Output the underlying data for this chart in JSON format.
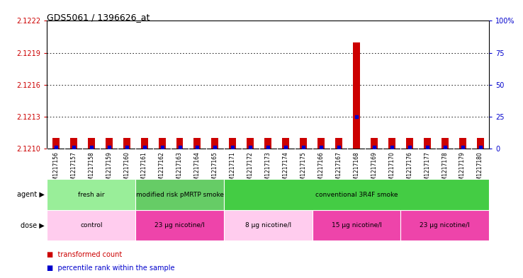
{
  "title": "GDS5061 / 1396626_at",
  "samples": [
    "GSM1217156",
    "GSM1217157",
    "GSM1217158",
    "GSM1217159",
    "GSM1217160",
    "GSM1217161",
    "GSM1217162",
    "GSM1217163",
    "GSM1217164",
    "GSM1217165",
    "GSM1217171",
    "GSM1217172",
    "GSM1217173",
    "GSM1217174",
    "GSM1217175",
    "GSM1217166",
    "GSM1217167",
    "GSM1217168",
    "GSM1217169",
    "GSM1217170",
    "GSM1217176",
    "GSM1217177",
    "GSM1217178",
    "GSM1217179",
    "GSM1217180"
  ],
  "transformed_counts": [
    2.1211,
    2.1211,
    2.1211,
    2.1211,
    2.1211,
    2.1211,
    2.1211,
    2.1211,
    2.1211,
    2.1211,
    2.1211,
    2.1211,
    2.1211,
    2.1211,
    2.1211,
    2.1211,
    2.1211,
    2.122,
    2.1211,
    2.1211,
    2.1211,
    2.1211,
    2.1211,
    2.1211,
    2.1211
  ],
  "percentile_ranks": [
    1,
    1,
    1,
    1,
    1,
    1,
    1,
    1,
    1,
    1,
    1,
    1,
    1,
    1,
    1,
    1,
    1,
    25,
    1,
    1,
    1,
    1,
    1,
    1,
    1
  ],
  "ylim_left": [
    2.121,
    2.1222
  ],
  "yticks_left": [
    2.121,
    2.1213,
    2.1216,
    2.1219,
    2.1222
  ],
  "ylim_right": [
    0,
    100
  ],
  "yticks_right": [
    0,
    25,
    50,
    75,
    100
  ],
  "ytick_labels_right": [
    "0",
    "25",
    "50",
    "75",
    "100%"
  ],
  "agent_groups": [
    {
      "label": "fresh air",
      "start": 0,
      "end": 5,
      "color": "#99EE99"
    },
    {
      "label": "modified risk pMRTP smoke",
      "start": 5,
      "end": 10,
      "color": "#66CC66"
    },
    {
      "label": "conventional 3R4F smoke",
      "start": 10,
      "end": 25,
      "color": "#44CC44"
    }
  ],
  "dose_groups": [
    {
      "label": "control",
      "start": 0,
      "end": 5,
      "color": "#FFCCEE"
    },
    {
      "label": "23 μg nicotine/l",
      "start": 5,
      "end": 10,
      "color": "#EE44AA"
    },
    {
      "label": "8 μg nicotine/l",
      "start": 10,
      "end": 15,
      "color": "#FFCCEE"
    },
    {
      "label": "15 μg nicotine/l",
      "start": 15,
      "end": 20,
      "color": "#EE44AA"
    },
    {
      "label": "23 μg nicotine/l",
      "start": 20,
      "end": 25,
      "color": "#EE44AA"
    }
  ],
  "bar_color": "#CC0000",
  "dot_color": "#0000CC",
  "plot_bg": "#ffffff",
  "tick_area_bg": "#dddddd",
  "grid_color": "#000000",
  "left_tick_color": "#CC0000",
  "right_tick_color": "#0000CC",
  "fig_bg": "#ffffff"
}
